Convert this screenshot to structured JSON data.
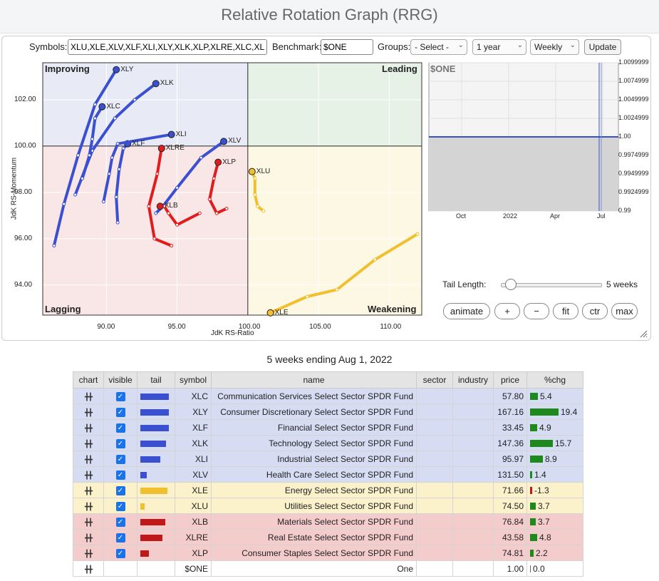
{
  "page_title": "Relative Rotation Graph (RRG)",
  "controls": {
    "symbols_label": "Symbols:",
    "symbols_value": "XLU,XLE,XLV,XLF,XLI,XLY,XLK,XLP,XLRE,XLC,XLB",
    "benchmark_label": "Benchmark:",
    "benchmark_value": "$ONE",
    "groups_label": "Groups:",
    "groups_selected": "- Select -",
    "period_selected": "1 year",
    "interval_selected": "Weekly",
    "update_label": "Update"
  },
  "quadrants": {
    "improving": "Improving",
    "leading": "Leading",
    "lagging": "Lagging",
    "weakening": "Weakening"
  },
  "colors": {
    "improving": "#3a50d0",
    "weakening": "#f0c030",
    "lagging": "#e01c1c",
    "leading": "#2e8b2e"
  },
  "chart_data": [
    {
      "type": "scatter",
      "xlabel": "JdK RS-Ratio",
      "ylabel": "JdK RS-Momentum",
      "xlim": [
        85.5,
        112.3
      ],
      "ylim": [
        92.7,
        103.6
      ],
      "x_ticks": [
        "90.00",
        "95.00",
        "100.00",
        "105.00",
        "110.00"
      ],
      "y_ticks": [
        "94.00",
        "96.00",
        "98.00",
        "100.00",
        "102.00"
      ],
      "series": [
        {
          "name": "XLY",
          "color": "#3a50d0",
          "points": [
            [
              86.3,
              95.7
            ],
            [
              87.0,
              97.5
            ],
            [
              88.0,
              99.6
            ],
            [
              89.2,
              101.8
            ],
            [
              90.7,
              103.3
            ]
          ]
        },
        {
          "name": "XLK",
          "color": "#3a50d0",
          "points": [
            [
              87.8,
              97.9
            ],
            [
              89.0,
              99.8
            ],
            [
              90.6,
              101.2
            ],
            [
              92.0,
              102.0
            ],
            [
              93.5,
              102.7
            ]
          ]
        },
        {
          "name": "XLC",
          "color": "#3a50d0",
          "points": [
            [
              88.3,
              98.6
            ],
            [
              88.8,
              99.6
            ],
            [
              89.0,
              100.3
            ],
            [
              89.2,
              101.2
            ],
            [
              89.7,
              101.7
            ]
          ]
        },
        {
          "name": "XLF",
          "color": "#3a50d0",
          "points": [
            [
              90.8,
              96.7
            ],
            [
              90.7,
              97.8
            ],
            [
              90.9,
              99.0
            ],
            [
              91.2,
              99.9
            ],
            [
              91.5,
              100.1
            ]
          ]
        },
        {
          "name": "XLI",
          "color": "#3a50d0",
          "points": [
            [
              89.8,
              97.6
            ],
            [
              90.2,
              98.8
            ],
            [
              90.4,
              99.5
            ],
            [
              90.8,
              100.1
            ],
            [
              94.6,
              100.5
            ]
          ]
        },
        {
          "name": "XLV",
          "color": "#3a50d0",
          "points": [
            [
              93.5,
              97.1
            ],
            [
              94.0,
              97.4
            ],
            [
              95.0,
              98.2
            ],
            [
              96.7,
              99.5
            ],
            [
              98.3,
              100.2
            ]
          ]
        },
        {
          "name": "XLE",
          "color": "#f0c030",
          "points": [
            [
              112.0,
              96.2
            ],
            [
              109.0,
              95.1
            ],
            [
              106.3,
              93.8
            ],
            [
              104.2,
              93.5
            ],
            [
              101.6,
              92.8
            ]
          ]
        },
        {
          "name": "XLU",
          "color": "#f0c030",
          "points": [
            [
              101.1,
              97.2
            ],
            [
              100.7,
              97.4
            ],
            [
              100.5,
              97.9
            ],
            [
              100.5,
              98.6
            ],
            [
              100.3,
              98.9
            ]
          ]
        },
        {
          "name": "XLB",
          "color": "#e01c1c",
          "points": [
            [
              96.6,
              97.1
            ],
            [
              95.0,
              96.6
            ],
            [
              94.4,
              97.1
            ],
            [
              94.1,
              97.4
            ],
            [
              93.8,
              97.4
            ]
          ]
        },
        {
          "name": "XLRE",
          "color": "#e01c1c",
          "points": [
            [
              94.6,
              95.7
            ],
            [
              93.4,
              96.0
            ],
            [
              93.0,
              97.4
            ],
            [
              93.6,
              98.8
            ],
            [
              93.9,
              99.9
            ]
          ]
        },
        {
          "name": "XLP",
          "color": "#e01c1c",
          "points": [
            [
              98.5,
              97.3
            ],
            [
              97.8,
              97.1
            ],
            [
              97.3,
              97.7
            ],
            [
              97.6,
              98.6
            ],
            [
              97.9,
              99.3
            ]
          ]
        }
      ]
    },
    {
      "type": "line",
      "title": "$ONE",
      "x_ticks": [
        "Oct",
        "2022",
        "Apr",
        "Jul"
      ],
      "y_ticks": [
        "1.0099999",
        "1.0074999",
        "1.0049999",
        "1.0024999",
        "1.00",
        "0.9974999",
        "0.9949999",
        "0.9924999",
        "0.99"
      ],
      "ylim": [
        0.99,
        1.01
      ],
      "value": 1.0
    }
  ],
  "tail_length_label": "Tail Length:",
  "tail_length_value": "5 weeks",
  "tail_length_level": 0.1,
  "buttons": {
    "animate": "animate",
    "zoom_in": "+",
    "zoom_out": "−",
    "fit": "fit",
    "ctr": "ctr",
    "max": "max"
  },
  "table": {
    "caption": "5 weeks ending Aug 1, 2022",
    "headers": [
      "chart",
      "visible",
      "tail",
      "symbol",
      "name",
      "sector",
      "industry",
      "price",
      "%chg"
    ],
    "rows": [
      {
        "group": "blue",
        "symbol": "XLC",
        "name": "Communication Services Select Sector SPDR Fund",
        "price": "57.80",
        "chg": "5.4",
        "chg_value": 5.4,
        "tail_color": "#3a50d0",
        "tail_level": 1.0,
        "visible": true
      },
      {
        "group": "blue",
        "symbol": "XLY",
        "name": "Consumer Discretionary Select Sector SPDR Fund",
        "price": "167.16",
        "chg": "19.4",
        "chg_value": 19.4,
        "tail_color": "#3a50d0",
        "tail_level": 1.0,
        "visible": true
      },
      {
        "group": "blue",
        "symbol": "XLF",
        "name": "Financial Select Sector SPDR Fund",
        "price": "33.45",
        "chg": "4.9",
        "chg_value": 4.9,
        "tail_color": "#3a50d0",
        "tail_level": 1.0,
        "visible": true
      },
      {
        "group": "blue",
        "symbol": "XLK",
        "name": "Technology Select Sector SPDR Fund",
        "price": "147.36",
        "chg": "15.7",
        "chg_value": 15.7,
        "tail_color": "#3a50d0",
        "tail_level": 0.9,
        "visible": true
      },
      {
        "group": "blue",
        "symbol": "XLI",
        "name": "Industrial Select Sector SPDR Fund",
        "price": "95.97",
        "chg": "8.9",
        "chg_value": 8.9,
        "tail_color": "#3a50d0",
        "tail_level": 0.7,
        "visible": true
      },
      {
        "group": "blue",
        "symbol": "XLV",
        "name": "Health Care Select Sector SPDR Fund",
        "price": "131.50",
        "chg": "1.4",
        "chg_value": 1.4,
        "tail_color": "#3a50d0",
        "tail_level": 0.22,
        "visible": true
      },
      {
        "group": "yellow",
        "symbol": "XLE",
        "name": "Energy Select Sector SPDR Fund",
        "price": "71.66",
        "chg": "-1.3",
        "chg_value": -1.3,
        "tail_color": "#f0c030",
        "tail_level": 0.95,
        "visible": true
      },
      {
        "group": "yellow",
        "symbol": "XLU",
        "name": "Utilities Select Sector SPDR Fund",
        "price": "74.50",
        "chg": "3.7",
        "chg_value": 3.7,
        "tail_color": "#f0c030",
        "tail_level": 0.15,
        "visible": true
      },
      {
        "group": "red",
        "symbol": "XLB",
        "name": "Materials Select Sector SPDR Fund",
        "price": "76.84",
        "chg": "3.7",
        "chg_value": 3.7,
        "tail_color": "#c01818",
        "tail_level": 0.88,
        "visible": true
      },
      {
        "group": "red",
        "symbol": "XLRE",
        "name": "Real Estate Select Sector SPDR Fund",
        "price": "43.58",
        "chg": "4.8",
        "chg_value": 4.8,
        "tail_color": "#c01818",
        "tail_level": 0.78,
        "visible": true
      },
      {
        "group": "red",
        "symbol": "XLP",
        "name": "Consumer Staples Select Sector SPDR Fund",
        "price": "74.81",
        "chg": "2.2",
        "chg_value": 2.2,
        "tail_color": "#c01818",
        "tail_level": 0.3,
        "visible": true
      },
      {
        "group": "plain",
        "symbol": "$ONE",
        "name": "One",
        "price": "1.00",
        "chg": "0.0",
        "chg_value": 0.0,
        "tail_color": "",
        "tail_level": 0,
        "visible": false
      }
    ]
  }
}
